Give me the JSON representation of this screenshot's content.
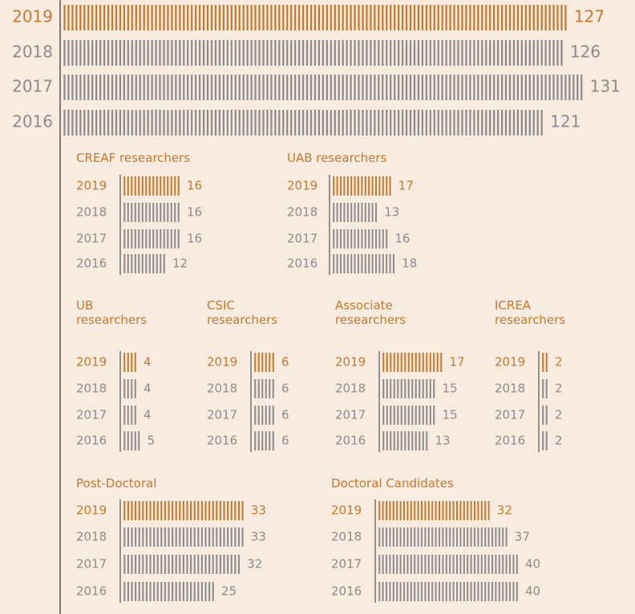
{
  "chart_data": [
    {
      "type": "tally",
      "categories": [
        "2019",
        "2018",
        "2017",
        "2016"
      ],
      "values": [
        127,
        126,
        131,
        121
      ],
      "color": "#8c8c8c",
      "highlight_color": "#c8782a",
      "highlight": "2019"
    },
    {
      "type": "tally",
      "title": "CREAF researchers",
      "categories": [
        "2019",
        "2018",
        "2017",
        "2016"
      ],
      "values": [
        16,
        16,
        16,
        12
      ],
      "color": "#8c8c8c",
      "highlight_color": "#c8782a",
      "highlight": "2019"
    },
    {
      "type": "tally",
      "title": "UAB researchers",
      "categories": [
        "2019",
        "2018",
        "2017",
        "2016"
      ],
      "values": [
        17,
        13,
        16,
        18
      ],
      "color": "#8c8c8c",
      "highlight_color": "#c8782a",
      "highlight": "2019"
    },
    {
      "type": "tally",
      "title": "UB researchers",
      "categories": [
        "2019",
        "2018",
        "2017",
        "2016"
      ],
      "values": [
        4,
        4,
        4,
        5
      ],
      "color": "#8c8c8c",
      "highlight_color": "#c8782a",
      "highlight": "2019"
    },
    {
      "type": "tally",
      "title": "CSIC researchers",
      "categories": [
        "2019",
        "2018",
        "2017",
        "2016"
      ],
      "values": [
        6,
        6,
        6,
        6
      ],
      "color": "#8c8c8c",
      "highlight_color": "#c8782a",
      "highlight": "2019"
    },
    {
      "type": "tally",
      "title": "Associate researchers",
      "categories": [
        "2019",
        "2018",
        "2017",
        "2016"
      ],
      "values": [
        17,
        15,
        15,
        13
      ],
      "color": "#8c8c8c",
      "highlight_color": "#c8782a",
      "highlight": "2019"
    },
    {
      "type": "tally",
      "title": "ICREA researchers",
      "categories": [
        "2019",
        "2018",
        "2017",
        "2016"
      ],
      "values": [
        2,
        2,
        2,
        2
      ],
      "color": "#8c8c8c",
      "highlight_color": "#c8782a",
      "highlight": "2019"
    },
    {
      "type": "tally",
      "title": "Post-Doctoral",
      "categories": [
        "2019",
        "2018",
        "2017",
        "2016"
      ],
      "values": [
        33,
        33,
        32,
        25
      ],
      "color": "#8c8c8c",
      "highlight_color": "#c8782a",
      "highlight": "2019"
    },
    {
      "type": "tally",
      "title": "Doctoral Candidates",
      "categories": [
        "2019",
        "2018",
        "2017",
        "2016"
      ],
      "values": [
        32,
        37,
        40,
        40
      ],
      "color": "#8c8c8c",
      "highlight_color": "#c8782a",
      "highlight": "2019"
    }
  ]
}
